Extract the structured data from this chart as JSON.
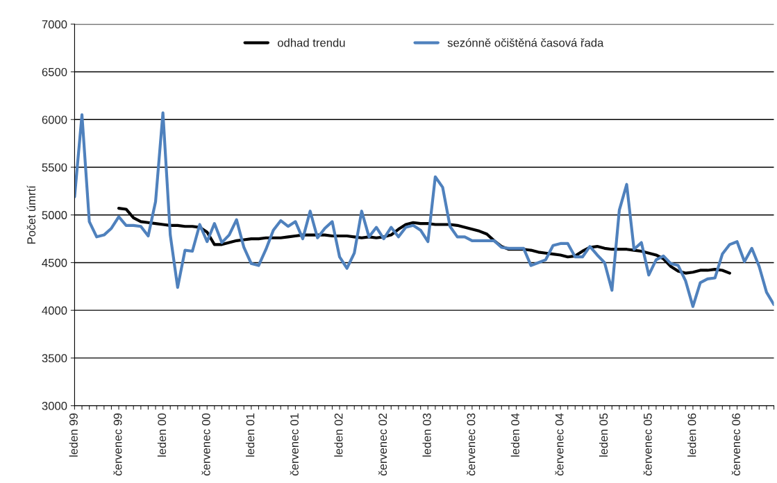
{
  "chart_data": {
    "type": "line",
    "ylabel": "Počet úmrtí",
    "categories": [
      "leden 99",
      null,
      null,
      null,
      null,
      null,
      "červenec 99",
      null,
      null,
      null,
      null,
      null,
      "leden 00",
      null,
      null,
      null,
      null,
      null,
      "červenec 00",
      null,
      null,
      null,
      null,
      null,
      "leden 01",
      null,
      null,
      null,
      null,
      null,
      "červenec 01",
      null,
      null,
      null,
      null,
      null,
      "leden 02",
      null,
      null,
      null,
      null,
      null,
      "červenec 02",
      null,
      null,
      null,
      null,
      null,
      "leden 03",
      null,
      null,
      null,
      null,
      null,
      "červenec 03",
      null,
      null,
      null,
      null,
      null,
      "leden 04",
      null,
      null,
      null,
      null,
      null,
      "červenec 04",
      null,
      null,
      null,
      null,
      null,
      "leden 05",
      null,
      null,
      null,
      null,
      null,
      "červenec 05",
      null,
      null,
      null,
      null,
      null,
      "leden 06",
      null,
      null,
      null,
      null,
      null,
      "červenec 06",
      null,
      null,
      null,
      null,
      null
    ],
    "series": [
      {
        "name": "odhad trendu",
        "color": "#000000",
        "values": [
          null,
          null,
          null,
          null,
          null,
          null,
          5070,
          5060,
          4970,
          4930,
          4920,
          4910,
          4900,
          4890,
          4890,
          4880,
          4880,
          4870,
          4820,
          4690,
          4690,
          4710,
          4730,
          4740,
          4750,
          4750,
          4760,
          4760,
          4760,
          4770,
          4780,
          4790,
          4790,
          4790,
          4790,
          4780,
          4780,
          4780,
          4770,
          4760,
          4770,
          4760,
          4770,
          4790,
          4850,
          4900,
          4920,
          4910,
          4910,
          4900,
          4900,
          4900,
          4890,
          4870,
          4850,
          4830,
          4800,
          4730,
          4670,
          4640,
          4640,
          4640,
          4630,
          4610,
          4600,
          4590,
          4580,
          4560,
          4570,
          4620,
          4660,
          4670,
          4650,
          4640,
          4640,
          4640,
          4630,
          4620,
          4600,
          4580,
          4540,
          4460,
          4410,
          4390,
          4400,
          4420,
          4420,
          4430,
          4420,
          4390,
          null,
          null,
          null,
          null,
          null,
          null
        ]
      },
      {
        "name": "sezónně očištěná časová řada",
        "color": "#4f81bd",
        "values": [
          5190,
          6050,
          4930,
          4770,
          4790,
          4860,
          4980,
          4890,
          4890,
          4880,
          4780,
          5140,
          6070,
          4790,
          4240,
          4630,
          4620,
          4900,
          4720,
          4910,
          4710,
          4790,
          4950,
          4660,
          4490,
          4470,
          4640,
          4840,
          4940,
          4880,
          4930,
          4750,
          5040,
          4760,
          4860,
          4930,
          4560,
          4440,
          4600,
          5040,
          4770,
          4870,
          4750,
          4870,
          4770,
          4870,
          4890,
          4840,
          4720,
          5400,
          5290,
          4880,
          4770,
          4770,
          4730,
          4730,
          4730,
          4730,
          4660,
          4650,
          4650,
          4650,
          4470,
          4500,
          4530,
          4680,
          4700,
          4700,
          4560,
          4560,
          4670,
          4580,
          4500,
          4210,
          5050,
          5320,
          4640,
          4710,
          4370,
          4530,
          4570,
          4490,
          4470,
          4310,
          4040,
          4290,
          4330,
          4340,
          4590,
          4690,
          4720,
          4510,
          4650,
          4460,
          4190,
          4060
        ]
      }
    ],
    "ylim": [
      3000,
      7000
    ],
    "yticks": [
      3000,
      3500,
      4000,
      4500,
      5000,
      5500,
      6000,
      6500,
      7000
    ],
    "grid": "y",
    "legend": "top"
  }
}
